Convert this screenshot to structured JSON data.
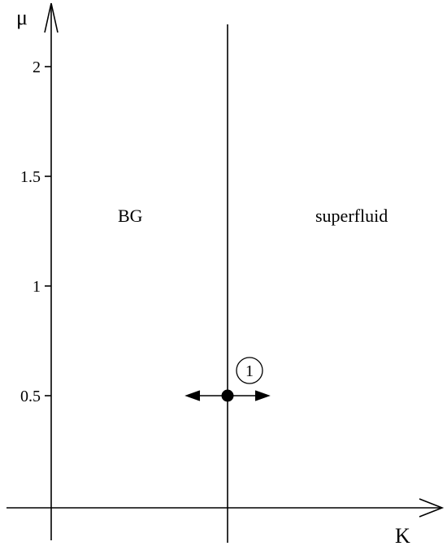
{
  "diagram": {
    "type": "phase-diagram",
    "x_axis": {
      "label": "K"
    },
    "y_axis": {
      "label": "μ",
      "ticks": [
        {
          "value": 0.5,
          "label": "0.5"
        },
        {
          "value": 1,
          "label": "1"
        },
        {
          "value": 1.5,
          "label": "1.5"
        },
        {
          "value": 2,
          "label": "2"
        }
      ]
    },
    "regions": {
      "left": "BG",
      "right": "superfluid"
    },
    "fixed_point": {
      "mu": 0.5,
      "label": "1",
      "flow": "bidirectional-horizontal"
    },
    "colors": {
      "ink": "#000000",
      "background": "#ffffff"
    }
  }
}
